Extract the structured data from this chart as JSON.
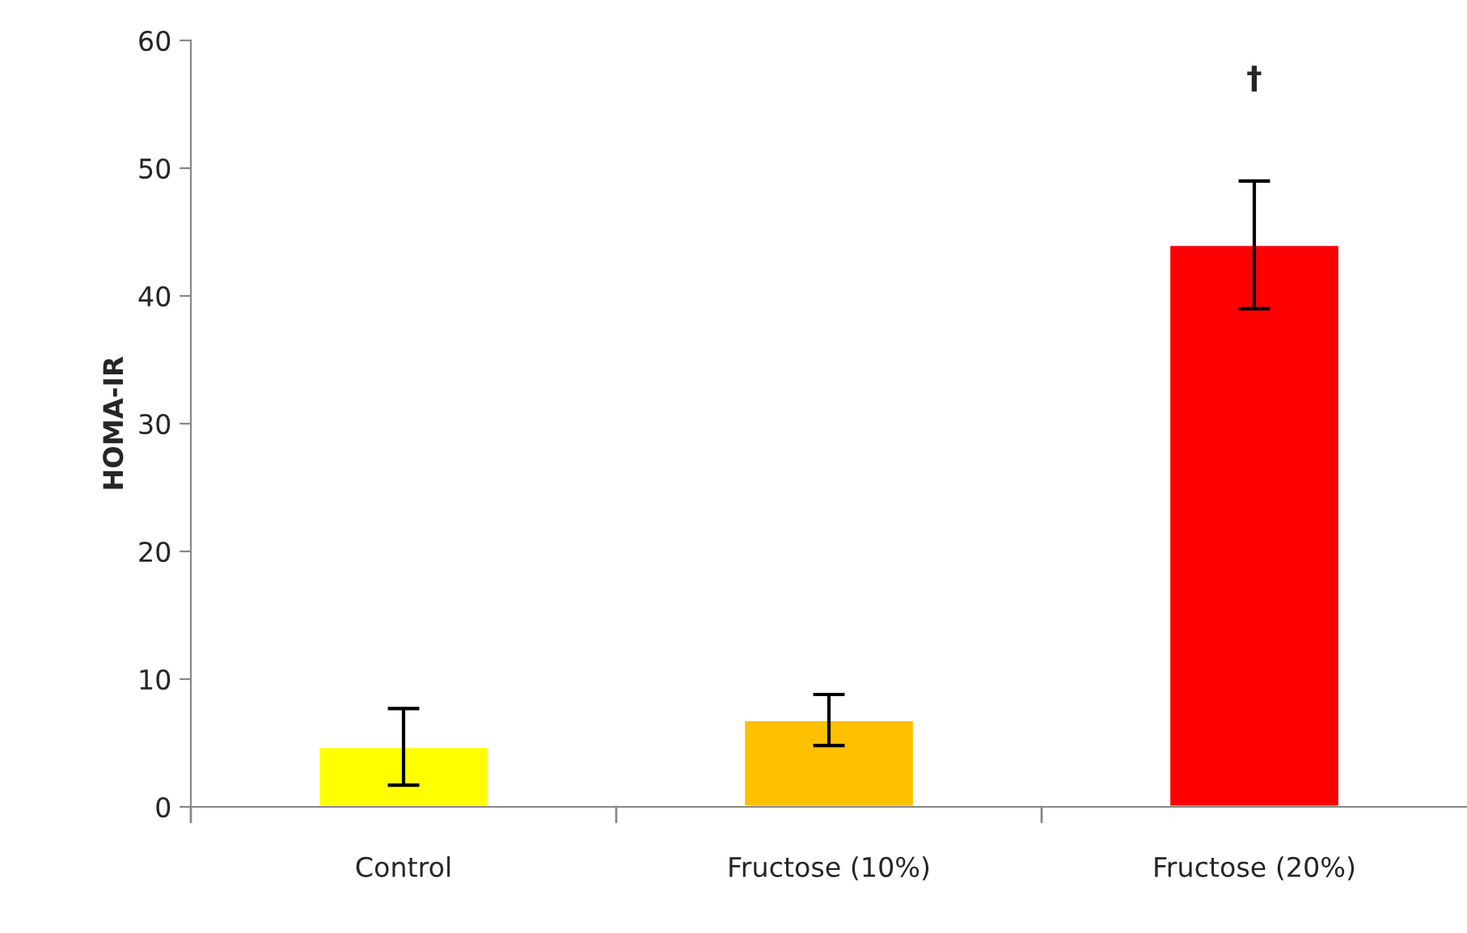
{
  "chart_data": {
    "type": "bar",
    "ylabel": "HOMA-IR",
    "categories": [
      "Control",
      "Fructose (10%)",
      "Fructose (20%)"
    ],
    "values": [
      4.7,
      6.8,
      44
    ],
    "colors": [
      "#ffff00",
      "#ffc000",
      "#ff0000"
    ],
    "errors": [
      3,
      2,
      5
    ],
    "ylim": [
      0,
      60
    ],
    "yticks": [
      0,
      10,
      20,
      30,
      40,
      50,
      60
    ],
    "grid": false,
    "annotations": [
      "†"
    ]
  }
}
